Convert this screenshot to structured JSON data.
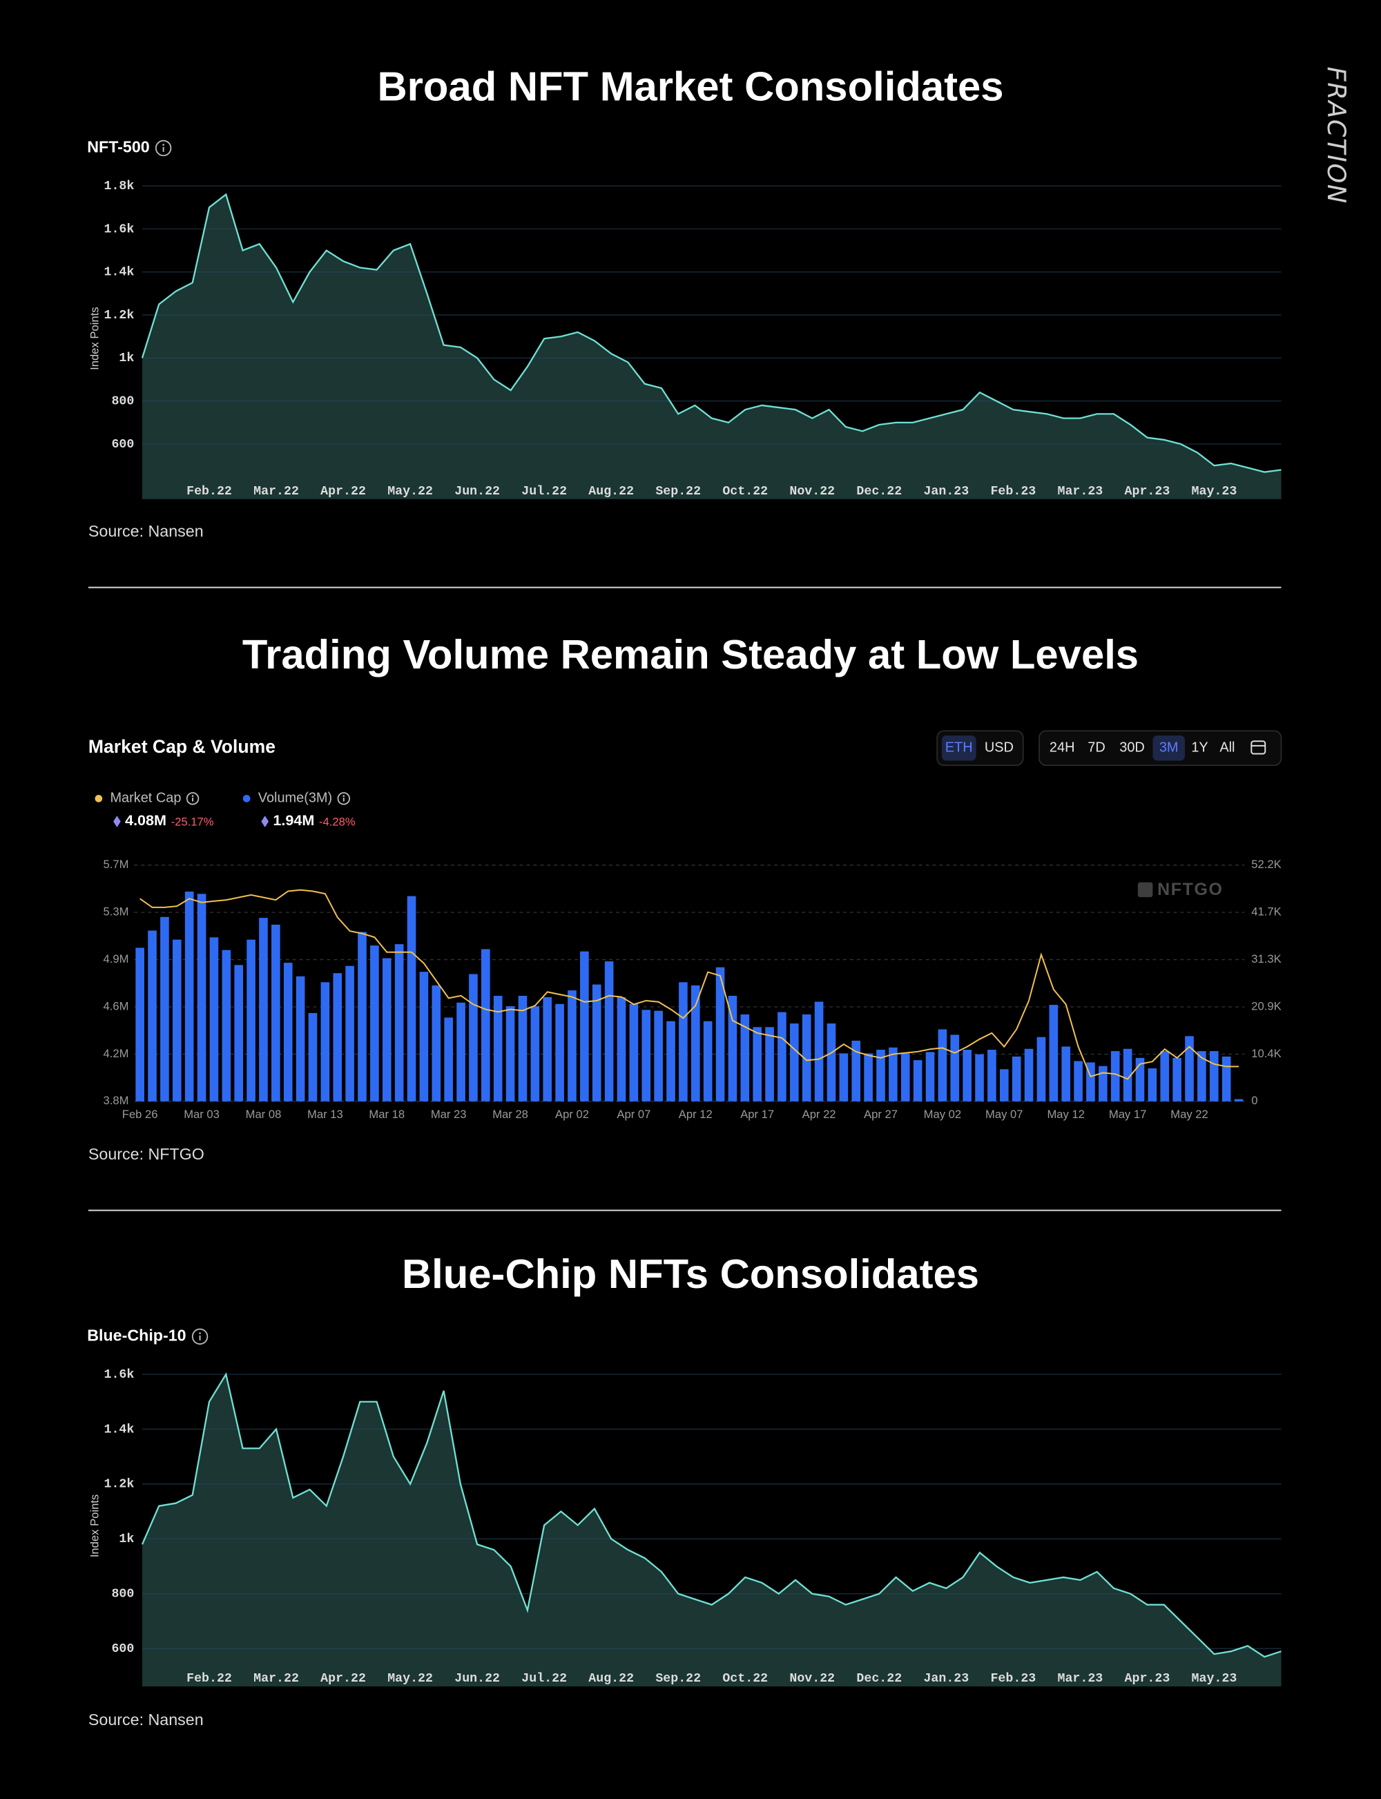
{
  "brand": "FRACTION",
  "chart_data": [
    {
      "type": "area",
      "title": "Broad NFT Market Consolidates",
      "label": "NFT-500",
      "y_label": "Index Points",
      "source": "Source: Nansen",
      "color": "#6fe0d4",
      "grid": true,
      "ylim": [
        344,
        1837
      ],
      "yticks": [
        600,
        800,
        {
          "value": 1000,
          "label": "1k"
        },
        {
          "value": 1200,
          "label": "1.2k"
        },
        {
          "value": 1400,
          "label": "1.4k"
        },
        {
          "value": 1600,
          "label": "1.6k"
        },
        {
          "value": 1800,
          "label": "1.8k"
        }
      ],
      "categories": [
        null,
        null,
        null,
        null,
        "Feb.22",
        null,
        null,
        null,
        "Mar.22",
        null,
        null,
        null,
        "Apr.22",
        null,
        null,
        null,
        "May.22",
        null,
        null,
        null,
        "Jun.22",
        null,
        null,
        null,
        "Jul.22",
        null,
        null,
        null,
        "Aug.22",
        null,
        null,
        null,
        "Sep.22",
        null,
        null,
        null,
        "Oct.22",
        null,
        null,
        null,
        "Nov.22",
        null,
        null,
        null,
        "Dec.22",
        null,
        null,
        null,
        "Jan.23",
        null,
        null,
        null,
        "Feb.23",
        null,
        null,
        null,
        "Mar.23",
        null,
        null,
        null,
        "Apr.23",
        null,
        null,
        null,
        "May.23",
        null,
        null,
        null,
        null
      ],
      "values": [
        1000,
        1250,
        1310,
        1350,
        1700,
        1760,
        1500,
        1530,
        1420,
        1260,
        1400,
        1500,
        1450,
        1420,
        1410,
        1500,
        1530,
        1300,
        1060,
        1050,
        1000,
        900,
        850,
        960,
        1090,
        1100,
        1120,
        1080,
        1020,
        980,
        880,
        860,
        740,
        780,
        720,
        700,
        760,
        780,
        770,
        760,
        720,
        760,
        680,
        660,
        690,
        700,
        700,
        720,
        740,
        760,
        840,
        800,
        760,
        750,
        740,
        720,
        720,
        740,
        740,
        690,
        630,
        620,
        600,
        560,
        500,
        510,
        490,
        470,
        480
      ]
    },
    {
      "type": "combo",
      "title": "Trading Volume Remain Steady at Low Levels",
      "label": "Market Cap & Volume",
      "source": "Source: NFTGO",
      "watermark": "NFTGO",
      "currency_buttons": [
        "ETH",
        "USD"
      ],
      "selected_currency": "ETH",
      "range_buttons": [
        "24H",
        "7D",
        "30D",
        "3M",
        "1Y",
        "All"
      ],
      "selected_range": "3M",
      "legend_stats": [
        {
          "value": "4.08M",
          "change": "-25.17%"
        },
        {
          "value": "1.94M",
          "change": "-4.28%"
        }
      ],
      "grid": true,
      "ylim": [
        3800000,
        5700000
      ],
      "yticks": [
        {
          "value": 3800000,
          "label": "3.8M"
        },
        {
          "value": 4180000,
          "label": "4.2M"
        },
        {
          "value": 4560000,
          "label": "4.6M"
        },
        {
          "value": 4940000,
          "label": "4.9M"
        },
        {
          "value": 5320000,
          "label": "5.3M"
        },
        {
          "value": 5700000,
          "label": "5.7M"
        }
      ],
      "y2lim": [
        0,
        52150
      ],
      "y2ticks": [
        0,
        {
          "value": 10430,
          "label": "10.4K"
        },
        {
          "value": 20860,
          "label": "20.9K"
        },
        {
          "value": 31290,
          "label": "31.3K"
        },
        {
          "value": 41720,
          "label": "41.7K"
        },
        {
          "value": 52150,
          "label": "52.2K"
        }
      ],
      "categories": [
        "Feb 26",
        null,
        null,
        null,
        null,
        "Mar 03",
        null,
        null,
        null,
        null,
        "Mar 08",
        null,
        null,
        null,
        null,
        "Mar 13",
        null,
        null,
        null,
        null,
        "Mar 18",
        null,
        null,
        null,
        null,
        "Mar 23",
        null,
        null,
        null,
        null,
        "Mar 28",
        null,
        null,
        null,
        null,
        "Apr 02",
        null,
        null,
        null,
        null,
        "Apr 07",
        null,
        null,
        null,
        null,
        "Apr 12",
        null,
        null,
        null,
        null,
        "Apr 17",
        null,
        null,
        null,
        null,
        "Apr 22",
        null,
        null,
        null,
        null,
        "Apr 27",
        null,
        null,
        null,
        null,
        "May 02",
        null,
        null,
        null,
        null,
        "May 07",
        null,
        null,
        null,
        null,
        "May 12",
        null,
        null,
        null,
        null,
        "May 17",
        null,
        null,
        null,
        null,
        "May 22",
        null,
        null,
        null,
        null
      ],
      "series": [
        {
          "name": "Market Cap",
          "color": "#f2c14e",
          "axis": "y",
          "values": [
            5430000,
            5360000,
            5360000,
            5370000,
            5430000,
            5400000,
            5410000,
            5420000,
            5440000,
            5460000,
            5440000,
            5420000,
            5490000,
            5500000,
            5490000,
            5470000,
            5280000,
            5170000,
            5150000,
            5120000,
            5000000,
            5000000,
            5000000,
            4910000,
            4770000,
            4630000,
            4650000,
            4580000,
            4540000,
            4520000,
            4540000,
            4530000,
            4570000,
            4680000,
            4660000,
            4640000,
            4600000,
            4610000,
            4650000,
            4640000,
            4580000,
            4610000,
            4600000,
            4540000,
            4470000,
            4570000,
            4840000,
            4810000,
            4450000,
            4400000,
            4350000,
            4330000,
            4310000,
            4220000,
            4130000,
            4140000,
            4190000,
            4260000,
            4200000,
            4170000,
            4150000,
            4180000,
            4190000,
            4200000,
            4220000,
            4230000,
            4190000,
            4240000,
            4300000,
            4350000,
            4240000,
            4380000,
            4610000,
            4980000,
            4700000,
            4580000,
            4240000,
            4000000,
            4030000,
            4020000,
            3980000,
            4100000,
            4120000,
            4220000,
            4150000,
            4240000,
            4150000,
            4100000,
            4080000,
            4080000
          ]
        },
        {
          "name": "Volume(3M)",
          "color": "#2f6bf2",
          "axis": "y2",
          "values": [
            33900,
            37700,
            40700,
            35700,
            46300,
            45800,
            36200,
            33400,
            30100,
            35700,
            40500,
            39000,
            30600,
            27600,
            19500,
            26300,
            28300,
            29900,
            37400,
            34400,
            31600,
            34700,
            45300,
            28600,
            25600,
            18500,
            21800,
            28100,
            33600,
            23300,
            21000,
            23300,
            21000,
            23000,
            21500,
            24500,
            33100,
            25800,
            30900,
            23000,
            21500,
            20200,
            20000,
            17700,
            26300,
            25600,
            17700,
            29600,
            23300,
            19200,
            16400,
            16400,
            19700,
            17200,
            19200,
            22000,
            17200,
            10600,
            13400,
            10600,
            11400,
            11900,
            10600,
            9100,
            10900,
            15900,
            14700,
            11400,
            10400,
            11400,
            7100,
            9900,
            11600,
            14200,
            21300,
            12100,
            8900,
            8600,
            7800,
            11100,
            11600,
            9600,
            7300,
            11100,
            9600,
            14400,
            11100,
            11100,
            9900,
            500
          ]
        }
      ]
    },
    {
      "type": "area",
      "title": "Blue-Chip NFTs Consolidates",
      "label": "Blue-Chip-10",
      "y_label": "Index Points",
      "source": "Source: Nansen",
      "color": "#6fe0d4",
      "grid": true,
      "ylim": [
        462,
        1633
      ],
      "yticks": [
        600,
        800,
        {
          "value": 1000,
          "label": "1k"
        },
        {
          "value": 1200,
          "label": "1.2k"
        },
        {
          "value": 1400,
          "label": "1.4k"
        },
        {
          "value": 1600,
          "label": "1.6k"
        }
      ],
      "categories": [
        null,
        null,
        null,
        null,
        "Feb.22",
        null,
        null,
        null,
        "Mar.22",
        null,
        null,
        null,
        "Apr.22",
        null,
        null,
        null,
        "May.22",
        null,
        null,
        null,
        "Jun.22",
        null,
        null,
        null,
        "Jul.22",
        null,
        null,
        null,
        "Aug.22",
        null,
        null,
        null,
        "Sep.22",
        null,
        null,
        null,
        "Oct.22",
        null,
        null,
        null,
        "Nov.22",
        null,
        null,
        null,
        "Dec.22",
        null,
        null,
        null,
        "Jan.23",
        null,
        null,
        null,
        "Feb.23",
        null,
        null,
        null,
        "Mar.23",
        null,
        null,
        null,
        "Apr.23",
        null,
        null,
        null,
        "May.23",
        null,
        null,
        null,
        null
      ],
      "values": [
        980,
        1120,
        1130,
        1160,
        1500,
        1600,
        1330,
        1330,
        1400,
        1150,
        1180,
        1120,
        1300,
        1500,
        1500,
        1300,
        1200,
        1350,
        1540,
        1200,
        980,
        960,
        900,
        740,
        1050,
        1100,
        1050,
        1110,
        1000,
        960,
        930,
        880,
        800,
        780,
        760,
        800,
        860,
        840,
        800,
        850,
        800,
        790,
        760,
        780,
        800,
        860,
        810,
        840,
        820,
        860,
        950,
        900,
        860,
        840,
        850,
        860,
        850,
        880,
        820,
        800,
        760,
        760,
        700,
        640,
        580,
        590,
        610,
        570,
        590
      ]
    }
  ]
}
